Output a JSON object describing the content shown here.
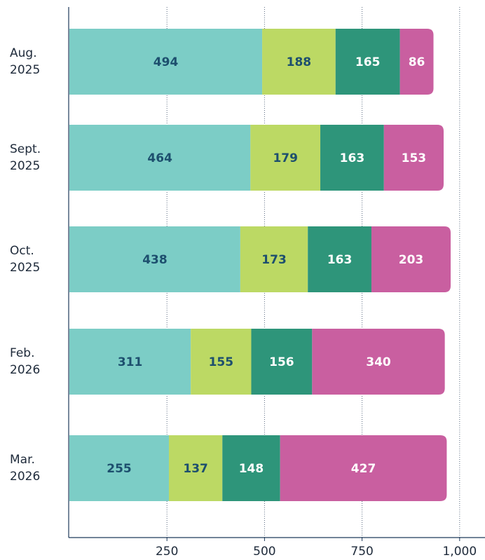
{
  "chart_data": {
    "type": "stacked-bar-horizontal",
    "categories": [
      "Aug. 2025",
      "Sept. 2025",
      "Oct. 2025",
      "Feb. 2026",
      "Mar. 2026"
    ],
    "series": [
      {
        "color": "#7ccdc6",
        "label_color": "#1d4f6e",
        "values": [
          494,
          464,
          438,
          311,
          255
        ]
      },
      {
        "color": "#bcd964",
        "label_color": "#1d4f6e",
        "values": [
          188,
          179,
          173,
          155,
          137
        ]
      },
      {
        "color": "#2e957a",
        "label_color": "#ffffff",
        "values": [
          165,
          163,
          163,
          156,
          148
        ]
      },
      {
        "color": "#c95fa0",
        "label_color": "#ffffff",
        "values": [
          86,
          153,
          203,
          340,
          427
        ]
      }
    ],
    "xlim": [
      0,
      1065
    ],
    "xticks": [
      250,
      500,
      750,
      {
        "value": 1000,
        "label": "1,000"
      }
    ],
    "grid": true
  }
}
